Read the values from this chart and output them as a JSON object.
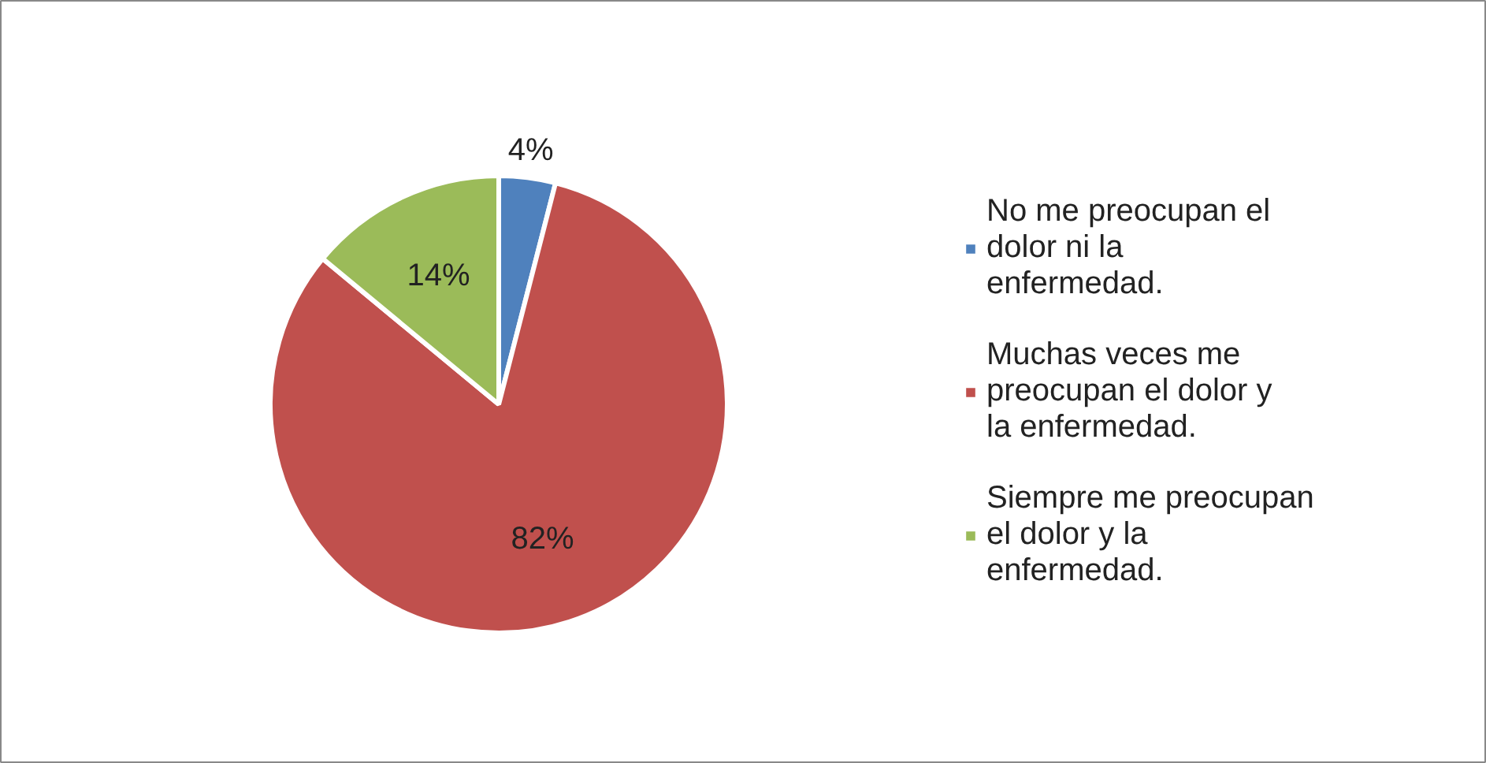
{
  "chart_data": {
    "type": "pie",
    "categories": [
      "No me preocupan el dolor ni la enfermedad.",
      "Muchas veces me preocupan el dolor y la enfermedad.",
      "Siempre me preocupan el dolor y la enfermedad."
    ],
    "values": [
      4,
      82,
      14
    ],
    "colors": [
      "#4f81bd",
      "#c0504d",
      "#9bbb59"
    ],
    "value_labels": [
      "4%",
      "82%",
      "14%"
    ],
    "legend": "right"
  }
}
